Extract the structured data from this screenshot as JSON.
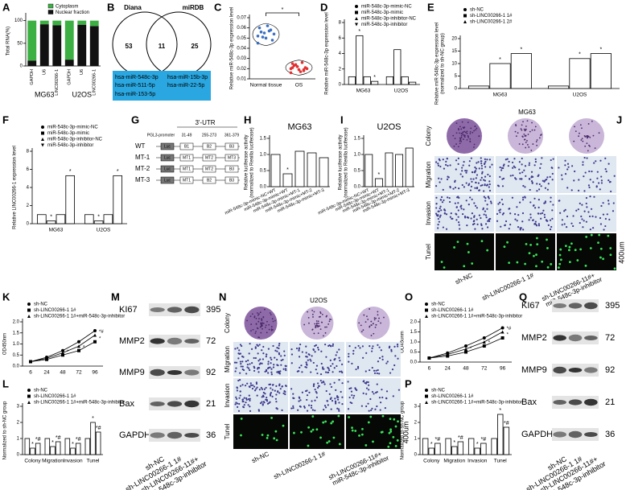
{
  "panel_labels": [
    "A",
    "B",
    "C",
    "D",
    "E",
    "F",
    "G",
    "H",
    "I",
    "J",
    "K",
    "L",
    "M",
    "N",
    "O",
    "P",
    "Q"
  ],
  "chart_data": [
    {
      "type": "stacked_bar",
      "ylabel": "Total RNA(%)",
      "categories": [
        "GAPDH",
        "U6",
        "LINC00266-1",
        "GAPDH",
        "U6",
        "LINC00266-1"
      ],
      "groups": [
        "MG63",
        "U2OS"
      ],
      "series": [
        {
          "name": "Cytoplasm",
          "color": "#3cb043",
          "values": [
            88,
            8,
            10,
            86,
            9,
            12
          ]
        },
        {
          "name": "Nuclear fraction",
          "color": "#111111",
          "values": [
            12,
            92,
            90,
            14,
            91,
            88
          ]
        }
      ],
      "ylim": [
        0,
        110
      ],
      "yticks": [
        0,
        50,
        100
      ]
    },
    {
      "type": "strip",
      "ylabel": "Relative miR-548c-3p expression level",
      "categories": [
        "Normal tissue",
        "OS"
      ],
      "annotation": "*",
      "series": [
        {
          "color": "#3a6fc4",
          "values": [
            0.052,
            0.055,
            0.058,
            0.06,
            0.05,
            0.048,
            0.056,
            0.062,
            0.054,
            0.051,
            0.057,
            0.045
          ]
        },
        {
          "color": "#e03030",
          "values": [
            0.02,
            0.022,
            0.018,
            0.025,
            0.019,
            0.021,
            0.023,
            0.017,
            0.02,
            0.024,
            0.026,
            0.016,
            0.022,
            0.019,
            0.021
          ]
        }
      ],
      "ylim": [
        0.01,
        0.07
      ],
      "yticks": [
        0.01,
        0.02,
        0.03,
        0.04,
        0.05,
        0.06,
        0.07
      ]
    },
    {
      "type": "bar",
      "ylabel": "Relative miR-548c-3p expression level",
      "categories": [
        "MG63",
        "U2OS"
      ],
      "series": [
        {
          "name": "miR-548c-3p-mimic-NC",
          "color": "#000",
          "values": [
            1,
            1
          ]
        },
        {
          "name": "miR-548c-3p-mimic",
          "color": "#000",
          "values": [
            6.3,
            4.5
          ],
          "annotations": [
            "*",
            null
          ]
        },
        {
          "name": "miR-548c-3p-inhibitor-NC",
          "color": "#000",
          "values": [
            1,
            1
          ]
        },
        {
          "name": "miR-548c-3p-inhibitor",
          "color": "#000",
          "values": [
            0.4,
            0.3
          ],
          "annotations": [
            "*",
            null
          ]
        }
      ],
      "ylim": [
        0,
        8
      ],
      "yticks": [
        0,
        2,
        4,
        6,
        8
      ]
    },
    {
      "type": "bar",
      "ylabel": [
        "Relative miR-548c-3p expression level",
        "(normalized to sh-NC group)"
      ],
      "categories": [
        "MG63",
        "U2OS"
      ],
      "series": [
        {
          "name": "sh-NC",
          "color": "#000",
          "values": [
            1,
            1
          ]
        },
        {
          "name": "sh-LINC00266-1 1#",
          "color": "#000",
          "values": [
            10,
            12
          ],
          "annotations": [
            "*",
            "*"
          ]
        },
        {
          "name": "sh-LINC00266-1 2#",
          "color": "#000",
          "values": [
            14,
            14
          ],
          "annotations": [
            "*",
            "*"
          ]
        }
      ],
      "ylim": [
        0,
        20
      ],
      "yticks": [
        0,
        5,
        10,
        15,
        20
      ]
    },
    {
      "type": "bar",
      "ylabel": "Relative LINC00266-1 expression level",
      "categories": [
        "MG63",
        "U2OS"
      ],
      "series": [
        {
          "name": "miR-548c-3p-mimic-NC",
          "color": "#000",
          "values": [
            1,
            1
          ]
        },
        {
          "name": "miR-548c-3p-mimic",
          "color": "#000",
          "values": [
            0.3,
            0.3
          ],
          "annotations": [
            "*",
            "*"
          ]
        },
        {
          "name": "miR-548c-3p-inhibitor-NC",
          "color": "#000",
          "values": [
            1,
            1
          ]
        },
        {
          "name": "miR-548c-3p-inhibitor",
          "color": "#000",
          "values": [
            5.3,
            5.3
          ],
          "annotations": [
            "*",
            "*"
          ]
        }
      ],
      "ylim": [
        0,
        8
      ],
      "yticks": [
        0,
        2,
        4,
        6,
        8
      ]
    },
    {
      "type": "bar",
      "title": "MG63",
      "ylabel": [
        "Relative luciferase activity",
        "(normalized to Renilla luciferase)"
      ],
      "categories": [
        "miR-548c-3p-mimic-NC+WT",
        "miR-548c-3p-mimic+WT",
        "miR-548c-3p-mimic+MT-1",
        "miR-548c-3p-mimic+MT-2",
        "miR-548c-3p-mimic+MT-3"
      ],
      "series": [
        {
          "color": "#000",
          "values": [
            1,
            0.4,
            1.1,
            1.05,
            0.9
          ],
          "annotations": [
            null,
            "*",
            null,
            null,
            null
          ]
        }
      ],
      "ylim": [
        0,
        1.5
      ],
      "yticks": [
        {
          "value": 0,
          "label": "0.0"
        },
        0.5,
        {
          "value": 1,
          "label": "1.0"
        },
        1.5
      ]
    },
    {
      "type": "bar",
      "title": "U2OS",
      "ylabel": [
        "Relative luciferase activity",
        "(normalized to Renilla luciferase)"
      ],
      "categories": [
        "miR-548c-3p-mimic-NC+WT",
        "miR-548c-3p-mimic+WT",
        "miR-548c-3p-mimic+MT-1",
        "miR-548c-3p-mimic+MT-2",
        "miR-548c-3p-mimic+MT-3"
      ],
      "series": [
        {
          "color": "#000",
          "values": [
            1,
            0.25,
            1.05,
            1.0,
            1.2
          ],
          "annotations": [
            null,
            "*",
            null,
            null,
            null
          ]
        }
      ],
      "ylim": [
        0,
        1.5
      ],
      "yticks": [
        {
          "value": 0,
          "label": "0.0"
        },
        0.5,
        {
          "value": 1,
          "label": "1.0"
        },
        1.5
      ]
    },
    {
      "type": "line",
      "ylabel": "OD450nm",
      "categories": [
        "6",
        "24",
        "48",
        "72",
        "96"
      ],
      "series": [
        {
          "name": "sh-NC",
          "color": "#000",
          "values": [
            0.2,
            0.4,
            0.7,
            1.1,
            1.6
          ]
        },
        {
          "name": "sh-LINC00266-1 1#",
          "color": "#000",
          "values": [
            0.2,
            0.3,
            0.5,
            0.7,
            1.1
          ],
          "annotations": [
            null,
            null,
            "*",
            "*",
            "*"
          ]
        },
        {
          "name": "sh-LINC00266-1 1#+miR-548c-3p-inhibitor",
          "color": "#000",
          "values": [
            0.2,
            0.35,
            0.6,
            0.9,
            1.4
          ],
          "annotations": [
            null,
            null,
            null,
            null,
            "*#"
          ]
        }
      ],
      "ylim": [
        0,
        2
      ],
      "yticks": [
        {
          "value": 0,
          "label": "0.0"
        },
        0.5,
        {
          "value": 1,
          "label": "1.0"
        },
        1.5,
        {
          "value": 2,
          "label": "2.0"
        }
      ]
    },
    {
      "type": "bar",
      "ylabel": "Normalized to sh-NC group",
      "categories": [
        "Colony",
        "Migration",
        "Invasion",
        "Tunel"
      ],
      "series": [
        {
          "name": "sh-NC",
          "color": "#000",
          "values": [
            1,
            1,
            1,
            1
          ]
        },
        {
          "name": "sh-LINC00266-1 1#",
          "color": "#000",
          "values": [
            0.4,
            0.5,
            0.4,
            2.0
          ],
          "annotations": [
            "*",
            "*",
            "*",
            "*"
          ]
        },
        {
          "name": "sh-LINC00266-1 1#+miR-548c-3p-inhibitor",
          "color": "#000",
          "values": [
            0.7,
            0.8,
            0.7,
            1.4
          ],
          "annotations": [
            "*#",
            "*#",
            "*#",
            "*#"
          ]
        }
      ],
      "ylim": [
        0,
        3
      ],
      "yticks": [
        0,
        1,
        2,
        3
      ]
    },
    {
      "type": "line",
      "ylabel": "OD450nm",
      "categories": [
        "6",
        "24",
        "48",
        "72",
        "96"
      ],
      "series": [
        {
          "name": "sh-NC",
          "color": "#000",
          "values": [
            0.2,
            0.45,
            0.8,
            1.2,
            1.7
          ]
        },
        {
          "name": "sh-LINC00266-1 1#",
          "color": "#000",
          "values": [
            0.2,
            0.3,
            0.5,
            0.8,
            1.2
          ],
          "annotations": [
            null,
            null,
            "*",
            "*",
            "*"
          ]
        },
        {
          "name": "sh-LINC00266-1 1#+miR-548c-3p-inhibitor",
          "color": "#000",
          "values": [
            0.2,
            0.38,
            0.65,
            1.0,
            1.5
          ],
          "annotations": [
            null,
            null,
            null,
            null,
            "*#"
          ]
        }
      ],
      "ylim": [
        0,
        2
      ],
      "yticks": [
        {
          "value": 0,
          "label": "0.0"
        },
        0.5,
        {
          "value": 1,
          "label": "1.0"
        },
        1.5,
        {
          "value": 2,
          "label": "2.0"
        }
      ]
    },
    {
      "type": "bar",
      "ylabel": "Normalized to sh-NC group",
      "categories": [
        "Colony",
        "Migration",
        "Invasion",
        "Tunel"
      ],
      "series": [
        {
          "name": "sh-NC",
          "color": "#000",
          "values": [
            1,
            1,
            1,
            1
          ]
        },
        {
          "name": "sh-LINC00266-1 1#",
          "color": "#000",
          "values": [
            0.4,
            0.5,
            0.4,
            2.5
          ],
          "annotations": [
            "*",
            "*",
            "*",
            "*"
          ]
        },
        {
          "name": "sh-LINC00266-1 1#+miR-548c-3p-inhibitor",
          "color": "#000",
          "values": [
            0.7,
            0.8,
            0.7,
            1.7
          ],
          "annotations": [
            "*#",
            "*#",
            "*#",
            "*#"
          ]
        }
      ],
      "ylim": [
        0,
        3
      ],
      "yticks": [
        0,
        1,
        2,
        3
      ]
    }
  ],
  "venn": {
    "left": "Diana",
    "right": "miRDB",
    "left_only": 53,
    "both": 11,
    "right_only": 25,
    "shared": [
      "hsa-miR-548c-3p",
      "hsa-miR-511-5p",
      "hsa-miR-153-5p",
      "hsa-miR-15b-3p",
      "hsa-miR-22-5p"
    ]
  },
  "constructs": {
    "utr": "3'-UTR",
    "promoter": "PGL3-promoter",
    "sites": [
      "31-49",
      "255-273",
      "361-379"
    ],
    "rows": [
      {
        "name": "WT",
        "boxes": [
          "Luc",
          "B1",
          "B2",
          "B3"
        ]
      },
      {
        "name": "MT-1",
        "boxes": [
          "Luc",
          "MT1",
          "MT2",
          "MT3"
        ]
      },
      {
        "name": "MT-2",
        "boxes": [
          "Luc",
          "MT1",
          "MT2",
          "B3"
        ]
      },
      {
        "name": "MT-3",
        "boxes": [
          "Luc",
          "MT1",
          "B2",
          "B3"
        ]
      }
    ]
  },
  "images_mg63": {
    "title": "MG63",
    "rows": [
      "Colony",
      "Migration",
      "Invasion",
      "Tunel"
    ],
    "scale": "400um",
    "groups": [
      [
        "sh-NC"
      ],
      [
        "sh-LINC00266-1 1#"
      ],
      [
        "sh-LINC00266-11#+",
        "miR-548c-3p-inhibitor"
      ]
    ]
  },
  "images_u2os": {
    "title": "U2OS",
    "rows": [
      "Colony",
      "Migration",
      "Invasion",
      "Tunel"
    ],
    "scale": "400um",
    "groups": [
      [
        "sh-NC"
      ],
      [
        "sh-LINC00266-1 1#"
      ],
      [
        "sh-LINC00266-11#+",
        "miR-548c-3p-inhibitor"
      ]
    ]
  },
  "blot_mg63": {
    "proteins": [
      {
        "name": "KI67",
        "size": 395
      },
      {
        "name": "MMP2",
        "size": 72
      },
      {
        "name": "MMP9",
        "size": 92
      },
      {
        "name": "Bax",
        "size": 21
      },
      {
        "name": "GAPDH",
        "size": 36
      }
    ],
    "groups": [
      [
        "sh-NC"
      ],
      [
        "sh-LINC00266-1 1#"
      ],
      [
        "sh-LINC00266-11#+",
        "miR-548c-3p-inhibitor"
      ]
    ]
  },
  "blot_u2os": {
    "proteins": [
      {
        "name": "KI67",
        "size": 395
      },
      {
        "name": "MMP2",
        "size": 72
      },
      {
        "name": "MMP9",
        "size": 92
      },
      {
        "name": "Bax",
        "size": 21
      },
      {
        "name": "GAPDH",
        "size": 36
      }
    ],
    "groups": [
      [
        "sh-NC"
      ],
      [
        "sh-LINC00266-1 1#"
      ],
      [
        "sh-LINC00266-11#+",
        "miR-548c-3p-inhibitor"
      ]
    ]
  }
}
